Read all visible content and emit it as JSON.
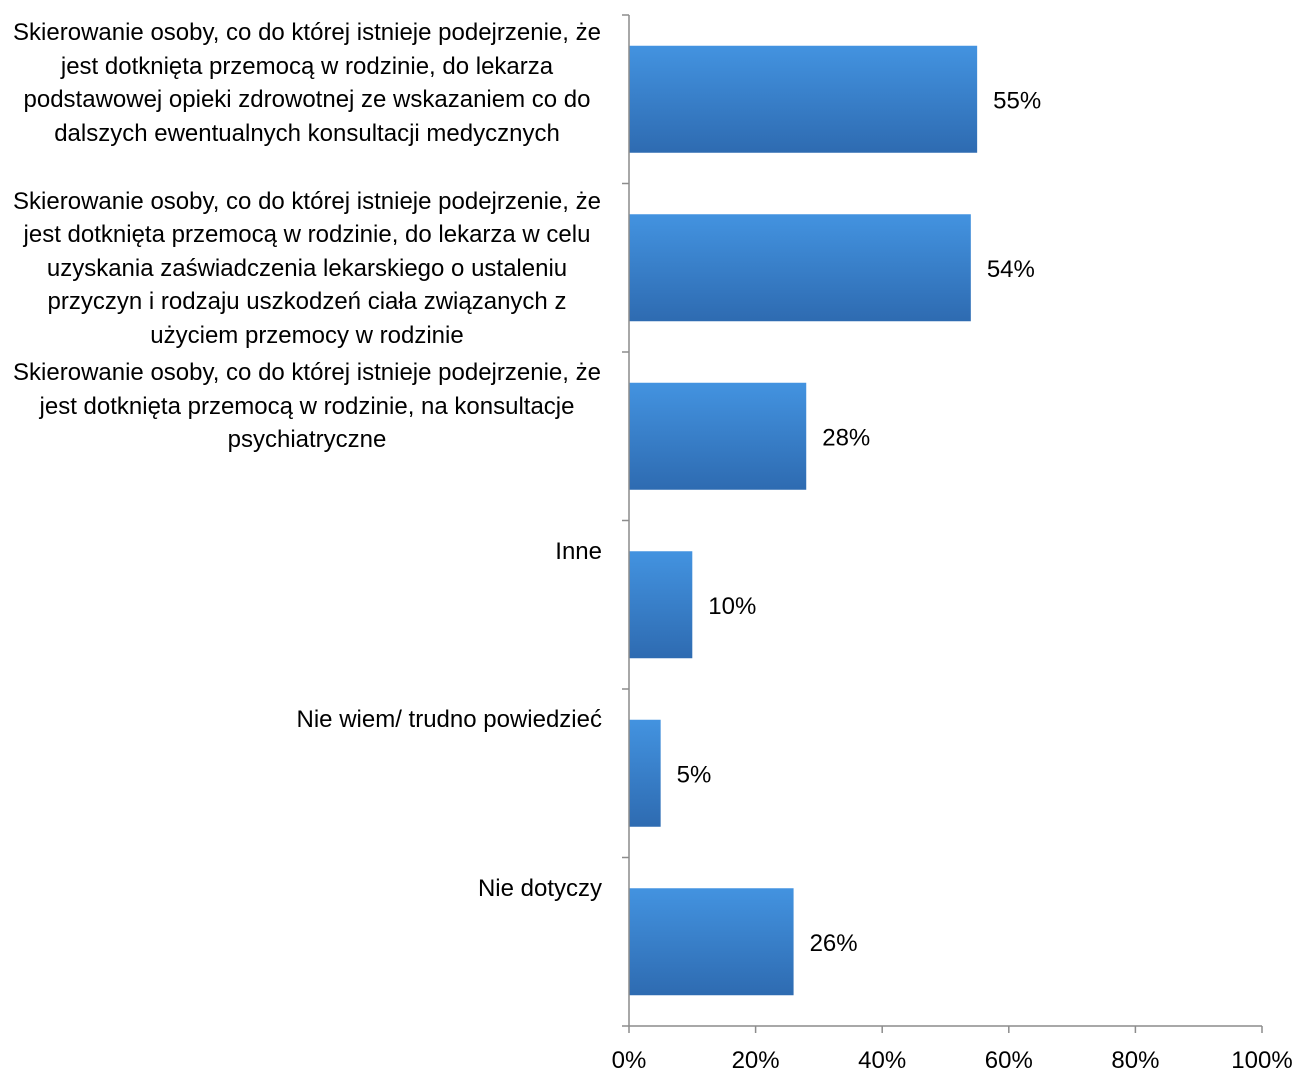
{
  "chart_data": {
    "type": "bar",
    "orientation": "horizontal",
    "categories": [
      [
        "Skierowanie osoby, co do której istnieje podejrzenie, że",
        "jest dotknięta przemocą w rodzinie, do lekarza",
        "podstawowej opieki zdrowotnej ze wskazaniem co do",
        "dalszych ewentualnych konsultacji medycznych"
      ],
      [
        "Skierowanie osoby, co do której istnieje podejrzenie, że",
        "jest dotknięta przemocą w rodzinie, do lekarza w celu",
        "uzyskania zaświadczenia lekarskiego o ustaleniu",
        "przyczyn i rodzaju uszkodzeń ciała związanych z",
        "użyciem przemocy w rodzinie"
      ],
      [
        "Skierowanie osoby, co do której istnieje podejrzenie, że",
        "jest dotknięta przemocą w rodzinie, na konsultacje",
        "psychiatryczne"
      ],
      [
        "Inne"
      ],
      [
        "Nie wiem/ trudno powiedzieć"
      ],
      [
        "Nie dotyczy"
      ]
    ],
    "values": [
      55,
      54,
      28,
      10,
      5,
      26
    ],
    "data_labels": [
      "55%",
      "54%",
      "28%",
      "10%",
      "5%",
      "26%"
    ],
    "xlim": [
      0,
      100
    ],
    "x_ticks": [
      "0%",
      "20%",
      "40%",
      "60%",
      "80%",
      "100%"
    ],
    "x_tick_values": [
      0,
      20,
      40,
      60,
      80,
      100
    ],
    "grid": false,
    "legend": "none",
    "colors": {
      "bar_top": "#4393e0",
      "bar_bottom": "#2e6bb1",
      "axis": "#8c8c8c",
      "text": "#000000"
    }
  }
}
